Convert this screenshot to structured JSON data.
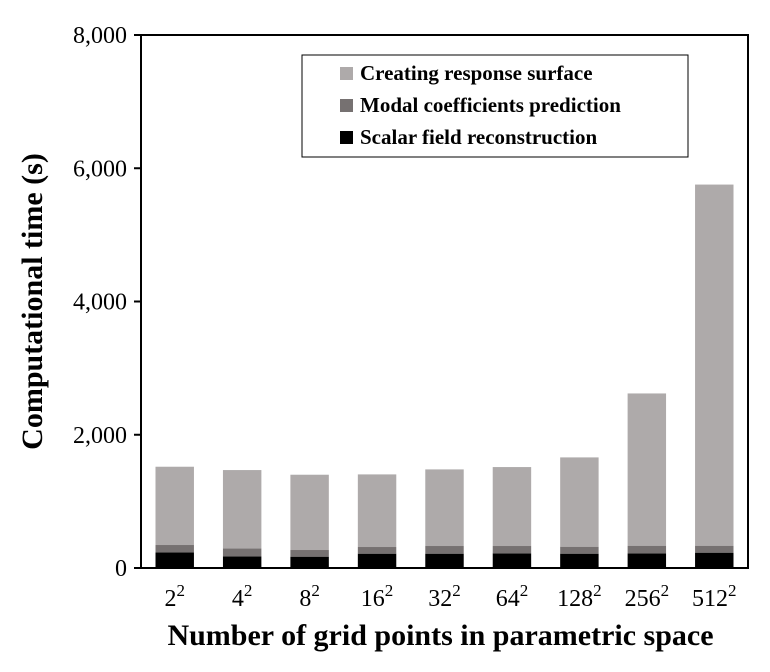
{
  "chart_data": {
    "type": "bar",
    "stacked": true,
    "categories": [
      "2",
      "4",
      "8",
      "16",
      "32",
      "64",
      "128",
      "256",
      "512"
    ],
    "category_superscript": "2",
    "series": [
      {
        "name": "Scalar field reconstruction",
        "color": "#000000",
        "values": [
          235,
          175,
          170,
          215,
          215,
          220,
          215,
          220,
          230
        ]
      },
      {
        "name": "Modal coefficients prediction",
        "color": "#767171",
        "values": [
          110,
          120,
          100,
          100,
          115,
          110,
          105,
          115,
          105
        ]
      },
      {
        "name": "Creating response surface",
        "color": "#aeaaaa",
        "values": [
          1175,
          1175,
          1130,
          1090,
          1150,
          1185,
          1340,
          2285,
          5420
        ]
      }
    ],
    "legend_order": [
      2,
      1,
      0
    ],
    "xlabel": "Number of grid points in parametric space",
    "ylabel": "Computational time (s)",
    "ylim": [
      0,
      8000
    ],
    "yticks": [
      0,
      2000,
      4000,
      6000,
      8000
    ],
    "ytick_labels": [
      "0",
      "2,000",
      "4,000",
      "6,000",
      "8,000"
    ],
    "grid": false,
    "legend_position": "top-right"
  }
}
